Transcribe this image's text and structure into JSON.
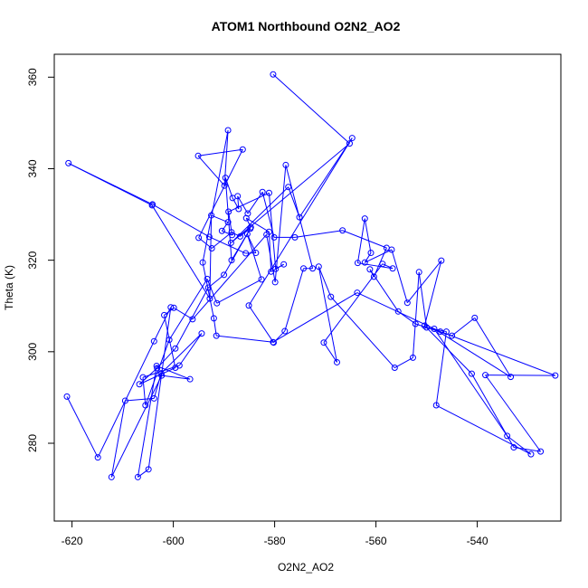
{
  "chart_data": {
    "type": "scatter",
    "title": "ATOM1 Northbound O2N2_AO2",
    "xlabel": "O2N2_AO2",
    "ylabel": "Theta (K)",
    "xlim": [
      -623.5,
      -523.5
    ],
    "ylim": [
      263,
      365
    ],
    "xticks": [
      -620,
      -600,
      -580,
      -560,
      -540
    ],
    "yticks": [
      280,
      300,
      320,
      340,
      360
    ],
    "x_tick_labels": [
      "-620",
      "-600",
      "-580",
      "-560",
      "-540"
    ],
    "y_tick_labels": [
      "280",
      "300",
      "320",
      "340",
      "360"
    ],
    "connect_points": true,
    "marker": "open-circle",
    "color": "#0000ff",
    "grid": false,
    "legend": "none",
    "series": [
      {
        "points": [
          [
            -580.3,
            360.6
          ],
          [
            -565.2,
            345.5
          ],
          [
            -588.6,
            323.8
          ],
          [
            -577.3,
            336.0
          ],
          [
            -575.1,
            329.4
          ],
          [
            -564.7,
            346.7
          ],
          [
            -585.1,
            310.1
          ],
          [
            -580.2,
            302.0
          ],
          [
            -578.0,
            304.5
          ],
          [
            -574.3,
            318.2
          ],
          [
            -572.5,
            318.2
          ],
          [
            -577.8,
            340.8
          ],
          [
            -579.9,
            315.2
          ],
          [
            -581.6,
            325.6
          ],
          [
            -596.2,
            307.1
          ],
          [
            -599.9,
            309.6
          ],
          [
            -601.8,
            308.0
          ],
          [
            -599.6,
            296.5
          ],
          [
            -606.7,
            292.9
          ],
          [
            -603.2,
            296.4
          ],
          [
            -599.6,
            300.7
          ],
          [
            -593.1,
            314.0
          ],
          [
            -590.0,
            316.8
          ],
          [
            -584.8,
            326.9
          ],
          [
            -588.5,
            320.0
          ],
          [
            -589.7,
            338.0
          ],
          [
            -588.3,
            333.6
          ],
          [
            -587.1,
            331.2
          ],
          [
            -587.3,
            334.0
          ],
          [
            -585.3,
            330.2
          ],
          [
            -582.4,
            334.9
          ],
          [
            -580.1,
            325.0
          ],
          [
            -576.0,
            325.0
          ],
          [
            -566.6,
            326.5
          ],
          [
            -557.9,
            322.7
          ],
          [
            -560.4,
            316.4
          ],
          [
            -561.2,
            318.0
          ],
          [
            -555.6,
            308.8
          ],
          [
            -552.2,
            306.1
          ],
          [
            -545.0,
            303.5
          ],
          [
            -540.5,
            307.4
          ],
          [
            -533.4,
            294.5
          ],
          [
            -548.5,
            305.0
          ],
          [
            -534.1,
            281.6
          ],
          [
            -529.4,
            277.6
          ],
          [
            -548.1,
            288.3
          ],
          [
            -546.1,
            304.4
          ],
          [
            -550.0,
            305.3
          ],
          [
            -551.5,
            317.4
          ],
          [
            -552.7,
            298.7
          ],
          [
            -556.3,
            296.5
          ],
          [
            -568.9,
            312.0
          ],
          [
            -571.3,
            318.6
          ],
          [
            -567.7,
            297.7
          ],
          [
            -570.3,
            302.0
          ],
          [
            -558.7,
            319.2
          ],
          [
            -556.7,
            318.2
          ],
          [
            -563.6,
            319.4
          ],
          [
            -562.2,
            329.1
          ],
          [
            -561.0,
            321.6
          ],
          [
            -562.2,
            319.5
          ],
          [
            -556.9,
            322.3
          ],
          [
            -553.8,
            310.7
          ],
          [
            -547.1,
            319.9
          ],
          [
            -550.4,
            305.7
          ],
          [
            -541.1,
            295.2
          ],
          [
            -532.8,
            279.1
          ],
          [
            -527.5,
            278.2
          ],
          [
            -538.4,
            294.9
          ],
          [
            -524.6,
            294.8
          ],
          [
            -547.3,
            304.4
          ],
          [
            -563.7,
            312.9
          ],
          [
            -580.3,
            302.1
          ],
          [
            -591.5,
            303.5
          ],
          [
            -592.0,
            307.3
          ],
          [
            -594.2,
            319.5
          ],
          [
            -589.2,
            348.4
          ],
          [
            -589.9,
            336.3
          ],
          [
            -595.1,
            342.8
          ],
          [
            -586.3,
            344.2
          ],
          [
            -595.0,
            324.9
          ],
          [
            -592.4,
            322.6
          ],
          [
            -588.5,
            326.1
          ],
          [
            -586.8,
            325.2
          ],
          [
            -584.7,
            327.2
          ],
          [
            -585.6,
            329.2
          ],
          [
            -581.1,
            326.2
          ],
          [
            -580.7,
            317.5
          ],
          [
            -578.2,
            319.1
          ],
          [
            -579.8,
            318.1
          ],
          [
            -581.1,
            334.7
          ],
          [
            -589.1,
            330.6
          ],
          [
            -588.4,
            325.5
          ],
          [
            -590.4,
            326.4
          ],
          [
            -589.2,
            328.3
          ],
          [
            -592.5,
            329.8
          ],
          [
            -592.8,
            311.6
          ],
          [
            -604.2,
            332.0
          ],
          [
            -620.7,
            341.2
          ],
          [
            -604.1,
            332.2
          ],
          [
            -592.9,
            325.1
          ],
          [
            -585.7,
            321.5
          ],
          [
            -583.7,
            321.6
          ],
          [
            -585.4,
            325.7
          ],
          [
            -582.6,
            315.8
          ],
          [
            -591.4,
            310.6
          ],
          [
            -593.3,
            315.9
          ],
          [
            -600.8,
            302.6
          ],
          [
            -605.5,
            288.3
          ],
          [
            -606.0,
            294.4
          ],
          [
            -598.8,
            297.0
          ],
          [
            -594.4,
            304.0
          ],
          [
            -602.4,
            295.3
          ],
          [
            -603.8,
            289.8
          ],
          [
            -609.5,
            289.3
          ],
          [
            -612.2,
            272.6
          ],
          [
            -602.3,
            294.8
          ],
          [
            -596.7,
            294.0
          ],
          [
            -603.3,
            296.9
          ],
          [
            -607.0,
            272.6
          ],
          [
            -604.9,
            274.3
          ],
          [
            -600.5,
            309.7
          ],
          [
            -603.8,
            302.3
          ],
          [
            -614.9,
            276.9
          ],
          [
            -621.0,
            290.2
          ]
        ]
      }
    ]
  }
}
